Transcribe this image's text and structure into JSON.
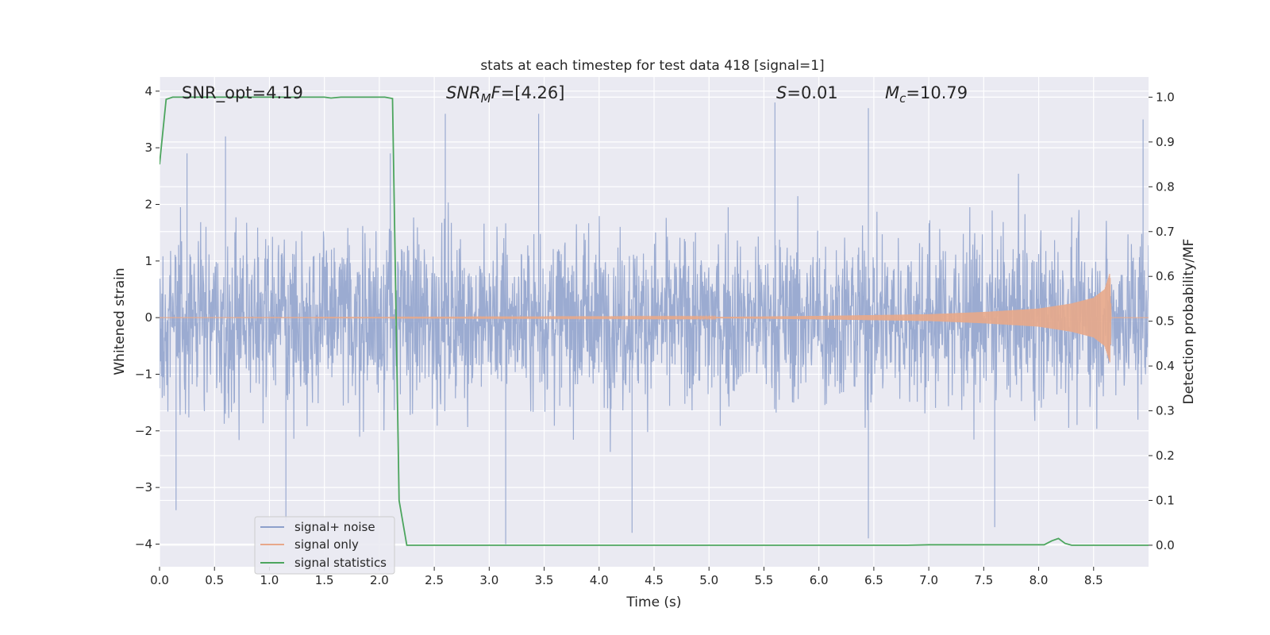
{
  "chart_data": {
    "type": "line",
    "title": "stats at each timestep for test data 418 [signal=1]",
    "xlabel": "Time (s)",
    "ylabel_left": "Whitened strain",
    "ylabel_right": "Detection probability/MF",
    "xlim": [
      0.0,
      9.0
    ],
    "ylim_left": [
      -4.4,
      4.25
    ],
    "ylim_right": [
      -0.048,
      1.045
    ],
    "x_ticks": [
      "0.0",
      "0.5",
      "1.0",
      "1.5",
      "2.0",
      "2.5",
      "3.0",
      "3.5",
      "4.0",
      "4.5",
      "5.0",
      "5.5",
      "6.0",
      "6.5",
      "7.0",
      "7.5",
      "8.0",
      "8.5"
    ],
    "y_ticks_left": [
      "−4",
      "−3",
      "−2",
      "−1",
      "0",
      "1",
      "2",
      "3",
      "4"
    ],
    "y_ticks_right": [
      "0.0",
      "0.1",
      "0.2",
      "0.3",
      "0.4",
      "0.5",
      "0.6",
      "0.7",
      "0.8",
      "0.9",
      "1.0"
    ],
    "grid": true,
    "legend_position": "lower-left",
    "annotations": {
      "snr_opt": "SNR_opt=4.19",
      "snr_mf_value": "=[4.26]",
      "s_value": "=0.01",
      "mc_value": "=10.79"
    },
    "series": [
      {
        "name": "signal+ noise",
        "axis": "left",
        "color": "#8da0cb",
        "description_values": {
          "typical_range": [
            -1.8,
            1.8
          ],
          "peak_points": [
            {
              "x": 0.25,
              "y": 2.9
            },
            {
              "x": 0.6,
              "y": 3.2
            },
            {
              "x": 0.15,
              "y": -3.4
            },
            {
              "x": 1.15,
              "y": -3.6
            },
            {
              "x": 2.1,
              "y": 2.9
            },
            {
              "x": 2.6,
              "y": 3.6
            },
            {
              "x": 3.15,
              "y": -4.0
            },
            {
              "x": 3.45,
              "y": 3.6
            },
            {
              "x": 4.3,
              "y": -3.8
            },
            {
              "x": 5.6,
              "y": 3.8
            },
            {
              "x": 6.45,
              "y": 3.7
            },
            {
              "x": 6.45,
              "y": -3.9
            },
            {
              "x": 7.6,
              "y": -3.7
            },
            {
              "x": 8.95,
              "y": 3.5
            }
          ]
        }
      },
      {
        "name": "signal only",
        "axis": "left",
        "color": "#e8a88a",
        "x": [
          0.0,
          5.0,
          6.0,
          7.0,
          7.5,
          8.0,
          8.3,
          8.5,
          8.6,
          8.65,
          8.66,
          9.0
        ],
        "envelope": [
          0.0,
          0.01,
          0.03,
          0.06,
          0.1,
          0.16,
          0.25,
          0.35,
          0.5,
          0.8,
          0.0,
          0.0
        ]
      },
      {
        "name": "signal statistics",
        "axis": "right",
        "color": "#4ca55e",
        "x": [
          0.0,
          0.06,
          0.12,
          0.3,
          1.5,
          1.56,
          1.65,
          2.05,
          2.12,
          2.18,
          2.25,
          5.3,
          6.8,
          7.0,
          8.05,
          8.12,
          8.18,
          8.24,
          8.3,
          9.0
        ],
        "values": [
          0.85,
          0.995,
          1.0,
          1.0,
          1.0,
          0.998,
          1.0,
          1.0,
          0.997,
          0.1,
          0.0,
          0.0,
          0.0,
          0.001,
          0.001,
          0.01,
          0.015,
          0.004,
          0.0,
          0.0
        ]
      }
    ]
  }
}
